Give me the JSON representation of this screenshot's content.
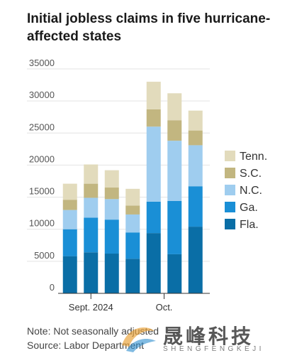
{
  "title": "Initial jobless claims in five hurricane-affected states",
  "note": "Note: Not seasonally adjusted",
  "source": "Source: Labor Department",
  "watermark": {
    "cn": "晟峰科技",
    "en": "SHENGFENGKEJI"
  },
  "colors": {
    "Fla.": "#0a6ea6",
    "Ga.": "#1a8fd6",
    "N.C.": "#9fcdef",
    "S.C.": "#c2b680",
    "Tenn.": "#e2dbbc",
    "grid": "#e3e3e3",
    "axis": "#333333"
  },
  "chart_data": {
    "type": "bar",
    "stacked": true,
    "categories": [
      "",
      "",
      "",
      "",
      "",
      "",
      "",
      ""
    ],
    "x_tick_labels": [
      {
        "label": "Sept. 2024",
        "at_category": 1
      },
      {
        "label": "Oct.",
        "at_category": 4.5
      }
    ],
    "y_ticks": [
      0,
      5000,
      10000,
      15000,
      20000,
      25000,
      30000,
      35000
    ],
    "ylim": [
      0,
      35000
    ],
    "grid": true,
    "legend_position": "right",
    "series": [
      {
        "name": "Fla.",
        "values": [
          5800,
          6400,
          6200,
          5400,
          9400,
          6100,
          10400,
          0
        ]
      },
      {
        "name": "Ga.",
        "values": [
          4200,
          5400,
          5300,
          4100,
          4900,
          8300,
          6300,
          0
        ]
      },
      {
        "name": "N.C.",
        "values": [
          3000,
          3100,
          3200,
          2800,
          11700,
          9400,
          6400,
          0
        ]
      },
      {
        "name": "S.C.",
        "values": [
          1600,
          2200,
          1800,
          1400,
          2700,
          3200,
          2300,
          0
        ]
      },
      {
        "name": "Tenn.",
        "values": [
          2500,
          3000,
          2700,
          2600,
          4300,
          4200,
          3100,
          0
        ]
      }
    ]
  }
}
